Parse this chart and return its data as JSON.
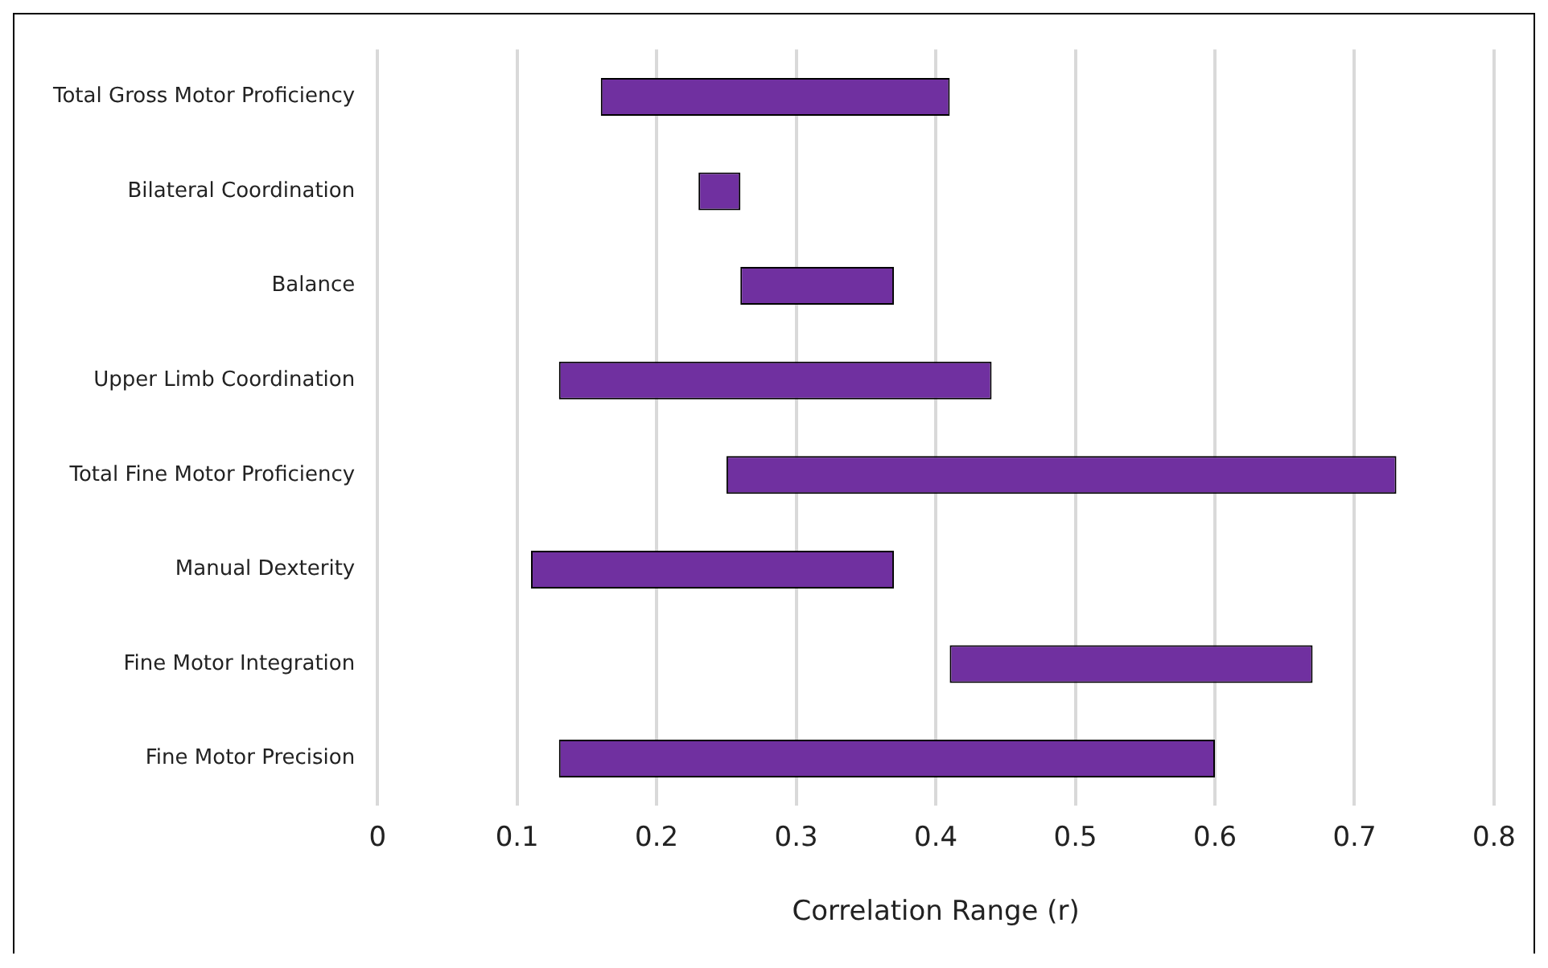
{
  "chart_data": {
    "type": "bar",
    "orientation": "horizontal",
    "xlabel": "Correlation Range (r)",
    "categories": [
      "Total Gross Motor Proficiency",
      "Bilateral Coordination",
      "Balance",
      "Upper Limb Coordination",
      "Total Fine Motor Proficiency",
      "Manual Dexterity",
      "Fine Motor Integration",
      "Fine Motor Precision"
    ],
    "base": [
      0.16,
      0.23,
      0.26,
      0.13,
      0.25,
      0.11,
      0.41,
      0.13
    ],
    "values": [
      0.25,
      0.03,
      0.11,
      0.31,
      0.48,
      0.26,
      0.26,
      0.47
    ],
    "color": "#7030a0",
    "xlim": [
      0,
      0.8
    ],
    "xticks": [
      0,
      0.1,
      0.2,
      0.3,
      0.4,
      0.5,
      0.6,
      0.7,
      0.8
    ],
    "grid": "x"
  }
}
